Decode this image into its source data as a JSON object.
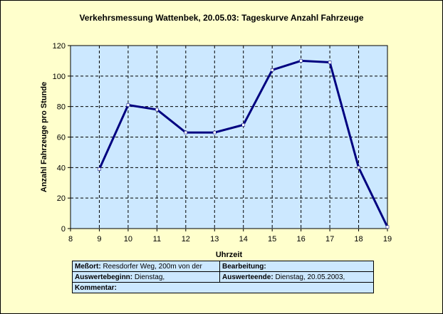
{
  "chart_data": {
    "type": "line",
    "title": "Verkehrsmessung Wattenbek, 20.05.03: Tageskurve Anzahl Fahrzeuge",
    "xlabel": "Uhrzeit",
    "ylabel": "Anzahl Fahrzeuge pro Stunde",
    "xlim": [
      8,
      19
    ],
    "ylim": [
      0,
      120
    ],
    "xticks": [
      8,
      9,
      10,
      11,
      12,
      13,
      14,
      15,
      16,
      17,
      18,
      19
    ],
    "yticks": [
      0,
      20,
      40,
      60,
      80,
      100,
      120
    ],
    "grid": true,
    "x": [
      9,
      10,
      11,
      12,
      13,
      14,
      15,
      16,
      17,
      18,
      19
    ],
    "y": [
      39,
      81,
      78,
      63,
      63,
      68,
      104,
      110,
      109,
      40,
      1
    ],
    "colors": {
      "line": "#000080",
      "plot_bg": "#cce8ff",
      "frame_bg": "#ffffcc",
      "marker": "#ffffff"
    }
  },
  "info": {
    "messort_label": "Meßort:",
    "messort_value": "Reesdorfer Weg, 200m von der",
    "bearbeitung_label": "Bearbeitung:",
    "bearbeitung_value": "",
    "auswertebeginn_label": "Auswertebeginn:",
    "auswertebeginn_value": "Dienstag,",
    "auswerteende_label": "Auswerteende:",
    "auswerteende_value": "Dienstag, 20.05.2003,",
    "kommentar_label": "Kommentar:",
    "kommentar_value": ""
  }
}
